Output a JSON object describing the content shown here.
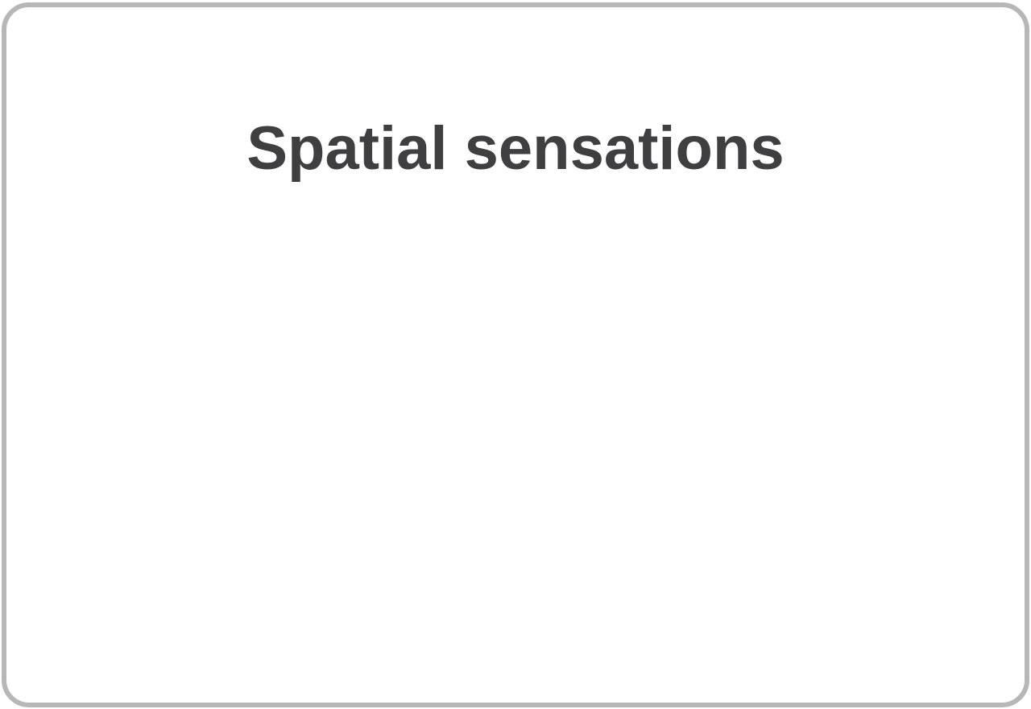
{
  "card": {
    "title": "Spatial sensations"
  },
  "colors": {
    "border": "#b7b7b7",
    "title": "#3f3f41",
    "background": "#ffffff"
  }
}
